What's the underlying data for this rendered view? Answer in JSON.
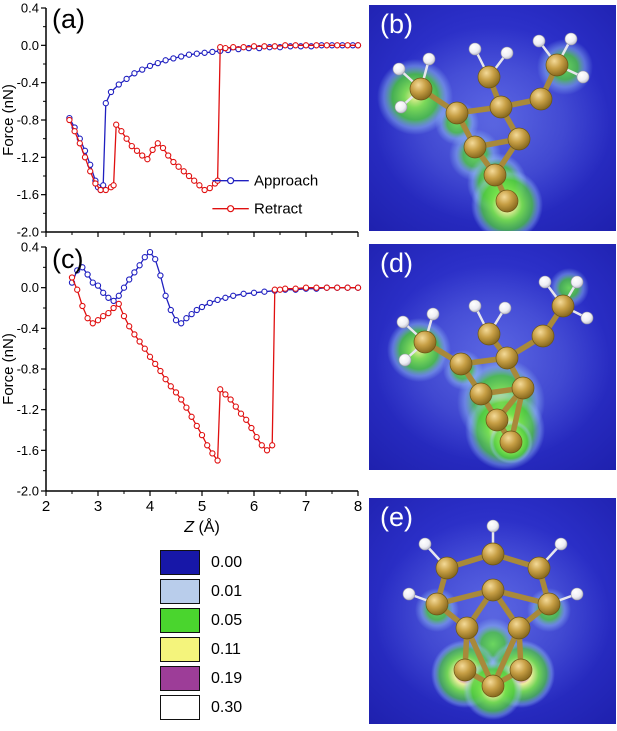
{
  "figure": {
    "panel_labels": {
      "a": "(a)",
      "b": "(b)",
      "c": "(c)",
      "d": "(d)",
      "e": "(e)"
    }
  },
  "chart_data": [
    {
      "id": "a",
      "type": "line",
      "title": "",
      "xlabel": "",
      "ylabel": "Force (nN)",
      "xlim": [
        2,
        8
      ],
      "ylim": [
        -2.0,
        0.4
      ],
      "yticks": [
        0.4,
        0.0,
        -0.4,
        -0.8,
        -1.2,
        -1.6,
        -2.0
      ],
      "xticks": [
        2,
        3,
        4,
        5,
        6,
        7,
        8
      ],
      "show_x_tick_labels": false,
      "legend": {
        "show": true,
        "position": "inside-lower-right"
      },
      "series": [
        {
          "name": "Approach",
          "color": "#2020c0",
          "marker": "circle-open",
          "x": [
            2.45,
            2.55,
            2.65,
            2.75,
            2.85,
            2.95,
            3.0,
            3.05,
            3.1,
            3.15,
            3.25,
            3.4,
            3.55,
            3.7,
            3.85,
            4.0,
            4.15,
            4.3,
            4.45,
            4.6,
            4.75,
            4.9,
            5.05,
            5.2,
            5.35,
            5.5,
            5.7,
            5.9,
            6.1,
            6.3,
            6.5,
            6.7,
            6.9,
            7.1,
            7.3,
            7.5,
            7.7,
            7.9,
            8.0
          ],
          "y": [
            -0.78,
            -0.88,
            -1.0,
            -1.13,
            -1.28,
            -1.45,
            -1.52,
            -1.55,
            -1.5,
            -0.62,
            -0.5,
            -0.42,
            -0.36,
            -0.3,
            -0.26,
            -0.22,
            -0.19,
            -0.16,
            -0.14,
            -0.12,
            -0.1,
            -0.09,
            -0.08,
            -0.07,
            -0.06,
            -0.05,
            -0.04,
            -0.03,
            -0.03,
            -0.02,
            -0.02,
            -0.01,
            -0.01,
            -0.01,
            0.0,
            0.0,
            0.0,
            0.0,
            0.0
          ]
        },
        {
          "name": "Retract",
          "color": "#e01010",
          "marker": "circle-open",
          "x": [
            2.45,
            2.55,
            2.65,
            2.75,
            2.85,
            2.95,
            3.05,
            3.15,
            3.25,
            3.3,
            3.35,
            3.45,
            3.55,
            3.65,
            3.75,
            3.85,
            3.95,
            4.05,
            4.15,
            4.25,
            4.35,
            4.45,
            4.55,
            4.65,
            4.75,
            4.85,
            4.95,
            5.05,
            5.15,
            5.25,
            5.3,
            5.35,
            5.45,
            5.6,
            5.8,
            6.0,
            6.2,
            6.4,
            6.6,
            6.8,
            7.0,
            7.2,
            7.4,
            7.6,
            7.8,
            8.0
          ],
          "y": [
            -0.8,
            -0.92,
            -1.05,
            -1.2,
            -1.35,
            -1.48,
            -1.55,
            -1.55,
            -1.52,
            -1.5,
            -0.85,
            -0.92,
            -1.0,
            -1.08,
            -1.13,
            -1.18,
            -1.22,
            -1.12,
            -1.05,
            -1.1,
            -1.18,
            -1.25,
            -1.3,
            -1.35,
            -1.4,
            -1.45,
            -1.5,
            -1.55,
            -1.53,
            -1.48,
            -1.45,
            -0.02,
            -0.03,
            -0.02,
            -0.02,
            -0.01,
            -0.01,
            -0.01,
            0.0,
            0.0,
            0.0,
            0.0,
            0.0,
            0.0,
            0.0,
            0.0
          ]
        }
      ]
    },
    {
      "id": "c",
      "type": "line",
      "title": "",
      "xlabel": "Z (Å)",
      "ylabel": "Force (nN)",
      "xlim": [
        2,
        8
      ],
      "ylim": [
        -2.0,
        0.4
      ],
      "yticks": [
        0.4,
        0.0,
        -0.4,
        -0.8,
        -1.2,
        -1.6,
        -2.0
      ],
      "xticks": [
        2,
        3,
        4,
        5,
        6,
        7,
        8
      ],
      "show_x_tick_labels": true,
      "legend": {
        "show": false
      },
      "series": [
        {
          "name": "Approach",
          "color": "#2020c0",
          "marker": "circle-open",
          "x": [
            2.5,
            2.6,
            2.7,
            2.8,
            2.9,
            3.0,
            3.1,
            3.2,
            3.3,
            3.4,
            3.5,
            3.6,
            3.7,
            3.8,
            3.9,
            4.0,
            4.1,
            4.2,
            4.3,
            4.4,
            4.5,
            4.6,
            4.7,
            4.8,
            4.9,
            5.0,
            5.15,
            5.3,
            5.45,
            5.6,
            5.8,
            6.0,
            6.2,
            6.4,
            6.6,
            6.8,
            7.0,
            7.2,
            7.4,
            7.6,
            7.8,
            8.0
          ],
          "y": [
            0.05,
            0.17,
            0.2,
            0.13,
            0.05,
            0.02,
            -0.05,
            -0.1,
            -0.13,
            -0.08,
            0.0,
            0.08,
            0.15,
            0.22,
            0.3,
            0.35,
            0.28,
            0.12,
            -0.08,
            -0.22,
            -0.32,
            -0.35,
            -0.3,
            -0.26,
            -0.22,
            -0.19,
            -0.15,
            -0.12,
            -0.1,
            -0.08,
            -0.06,
            -0.05,
            -0.04,
            -0.03,
            -0.02,
            -0.02,
            -0.01,
            -0.01,
            0.0,
            0.0,
            0.0,
            0.0
          ]
        },
        {
          "name": "Retract",
          "color": "#e01010",
          "marker": "circle-open",
          "x": [
            2.5,
            2.6,
            2.7,
            2.8,
            2.9,
            3.0,
            3.1,
            3.2,
            3.3,
            3.4,
            3.5,
            3.6,
            3.7,
            3.8,
            3.9,
            4.0,
            4.1,
            4.2,
            4.3,
            4.4,
            4.5,
            4.6,
            4.7,
            4.8,
            4.9,
            5.0,
            5.1,
            5.2,
            5.3,
            5.35,
            5.45,
            5.55,
            5.65,
            5.75,
            5.85,
            5.95,
            6.05,
            6.15,
            6.25,
            6.35,
            6.4,
            6.5,
            6.6,
            6.8,
            7.0,
            7.2,
            7.4,
            7.6,
            7.8,
            8.0
          ],
          "y": [
            0.1,
            -0.02,
            -0.18,
            -0.3,
            -0.35,
            -0.32,
            -0.28,
            -0.25,
            -0.2,
            -0.16,
            -0.28,
            -0.38,
            -0.46,
            -0.53,
            -0.6,
            -0.68,
            -0.75,
            -0.82,
            -0.9,
            -0.97,
            -1.03,
            -1.1,
            -1.18,
            -1.27,
            -1.36,
            -1.45,
            -1.55,
            -1.63,
            -1.7,
            -1.0,
            -1.05,
            -1.1,
            -1.17,
            -1.24,
            -1.3,
            -1.38,
            -1.47,
            -1.55,
            -1.6,
            -1.55,
            -0.02,
            -0.02,
            -0.01,
            -0.01,
            0.0,
            0.0,
            0.0,
            0.0,
            0.0,
            0.0
          ]
        }
      ]
    }
  ],
  "colorbar": {
    "entries": [
      {
        "value": "0.00",
        "color": "#1717a8"
      },
      {
        "value": "0.01",
        "color": "#b9cdeb"
      },
      {
        "value": "0.05",
        "color": "#4ad52e"
      },
      {
        "value": "0.11",
        "color": "#f4f47c"
      },
      {
        "value": "0.19",
        "color": "#9d3d98"
      },
      {
        "value": "0.30",
        "color": "#ffffff"
      }
    ]
  },
  "molecules": {
    "b": {
      "atoms": [
        [
          52,
          84,
          "C"
        ],
        [
          120,
          72,
          "C"
        ],
        [
          188,
          60,
          "C"
        ],
        [
          88,
          108,
          "C"
        ],
        [
          132,
          102,
          "C"
        ],
        [
          172,
          94,
          "C"
        ],
        [
          106,
          142,
          "C"
        ],
        [
          150,
          134,
          "C"
        ],
        [
          126,
          170,
          "C"
        ],
        [
          138,
          196,
          "C"
        ],
        [
          30,
          64,
          "H"
        ],
        [
          32,
          102,
          "H"
        ],
        [
          60,
          54,
          "H"
        ],
        [
          106,
          44,
          "H"
        ],
        [
          138,
          48,
          "H"
        ],
        [
          202,
          34,
          "H"
        ],
        [
          214,
          72,
          "H"
        ],
        [
          170,
          36,
          "H"
        ]
      ],
      "bonds": [
        [
          0,
          3
        ],
        [
          1,
          4
        ],
        [
          2,
          5
        ],
        [
          3,
          4
        ],
        [
          4,
          5
        ],
        [
          3,
          6
        ],
        [
          4,
          7
        ],
        [
          6,
          7
        ],
        [
          6,
          8
        ],
        [
          7,
          8
        ],
        [
          8,
          9
        ],
        [
          0,
          10
        ],
        [
          0,
          11
        ],
        [
          0,
          12
        ],
        [
          1,
          13
        ],
        [
          1,
          14
        ],
        [
          2,
          15
        ],
        [
          2,
          16
        ],
        [
          2,
          17
        ]
      ],
      "blobs": [
        [
          46,
          92,
          38,
          "mid"
        ],
        [
          196,
          62,
          28,
          "weak"
        ],
        [
          88,
          118,
          22,
          "weak"
        ],
        [
          106,
          150,
          26,
          "weak"
        ],
        [
          128,
          178,
          30,
          "mid"
        ],
        [
          138,
          200,
          36,
          "strong"
        ]
      ]
    },
    "d": {
      "atoms": [
        [
          56,
          98,
          "C"
        ],
        [
          120,
          90,
          "C"
        ],
        [
          194,
          62,
          "C"
        ],
        [
          92,
          120,
          "C"
        ],
        [
          138,
          114,
          "C"
        ],
        [
          174,
          92,
          "C"
        ],
        [
          112,
          150,
          "C"
        ],
        [
          154,
          144,
          "C"
        ],
        [
          128,
          176,
          "C"
        ],
        [
          142,
          198,
          "C"
        ],
        [
          34,
          78,
          "H"
        ],
        [
          36,
          116,
          "H"
        ],
        [
          64,
          70,
          "H"
        ],
        [
          106,
          62,
          "H"
        ],
        [
          136,
          64,
          "H"
        ],
        [
          208,
          38,
          "H"
        ],
        [
          218,
          74,
          "H"
        ],
        [
          176,
          38,
          "H"
        ]
      ],
      "bonds": [
        [
          0,
          3
        ],
        [
          1,
          4
        ],
        [
          2,
          5
        ],
        [
          3,
          4
        ],
        [
          4,
          5
        ],
        [
          3,
          6
        ],
        [
          4,
          7
        ],
        [
          6,
          7
        ],
        [
          6,
          8
        ],
        [
          7,
          8
        ],
        [
          8,
          9
        ],
        [
          7,
          9
        ],
        [
          0,
          10
        ],
        [
          0,
          11
        ],
        [
          0,
          12
        ],
        [
          1,
          13
        ],
        [
          1,
          14
        ],
        [
          2,
          15
        ],
        [
          2,
          16
        ],
        [
          2,
          17
        ]
      ],
      "blobs": [
        [
          50,
          106,
          32,
          "mid"
        ],
        [
          200,
          44,
          20,
          "weak"
        ],
        [
          94,
          126,
          20,
          "weak"
        ],
        [
          132,
          158,
          44,
          "mid"
        ],
        [
          136,
          186,
          40,
          "strong"
        ],
        [
          142,
          198,
          22,
          "magenta"
        ]
      ]
    },
    "e": {
      "atoms": [
        [
          78,
          70,
          "C"
        ],
        [
          124,
          56,
          "C"
        ],
        [
          170,
          70,
          "C"
        ],
        [
          68,
          106,
          "C"
        ],
        [
          124,
          92,
          "C"
        ],
        [
          180,
          106,
          "C"
        ],
        [
          98,
          130,
          "C"
        ],
        [
          150,
          130,
          "C"
        ],
        [
          96,
          172,
          "C"
        ],
        [
          124,
          188,
          "C"
        ],
        [
          152,
          172,
          "C"
        ],
        [
          56,
          46,
          "H"
        ],
        [
          124,
          28,
          "H"
        ],
        [
          192,
          46,
          "H"
        ],
        [
          40,
          96,
          "H"
        ],
        [
          208,
          96,
          "H"
        ]
      ],
      "bonds": [
        [
          0,
          1
        ],
        [
          1,
          2
        ],
        [
          0,
          3
        ],
        [
          2,
          5
        ],
        [
          3,
          4
        ],
        [
          4,
          5
        ],
        [
          3,
          6
        ],
        [
          5,
          7
        ],
        [
          4,
          6
        ],
        [
          4,
          7
        ],
        [
          6,
          8
        ],
        [
          7,
          10
        ],
        [
          8,
          9
        ],
        [
          9,
          10
        ],
        [
          6,
          9
        ],
        [
          7,
          9
        ],
        [
          0,
          11
        ],
        [
          1,
          12
        ],
        [
          2,
          13
        ],
        [
          3,
          14
        ],
        [
          5,
          15
        ]
      ],
      "blobs": [
        [
          68,
          112,
          22,
          "weak"
        ],
        [
          180,
          112,
          22,
          "weak"
        ],
        [
          124,
          146,
          26,
          "weak"
        ],
        [
          96,
          176,
          34,
          "magenta"
        ],
        [
          152,
          176,
          34,
          "magenta"
        ],
        [
          124,
          192,
          30,
          "strong"
        ]
      ]
    }
  }
}
